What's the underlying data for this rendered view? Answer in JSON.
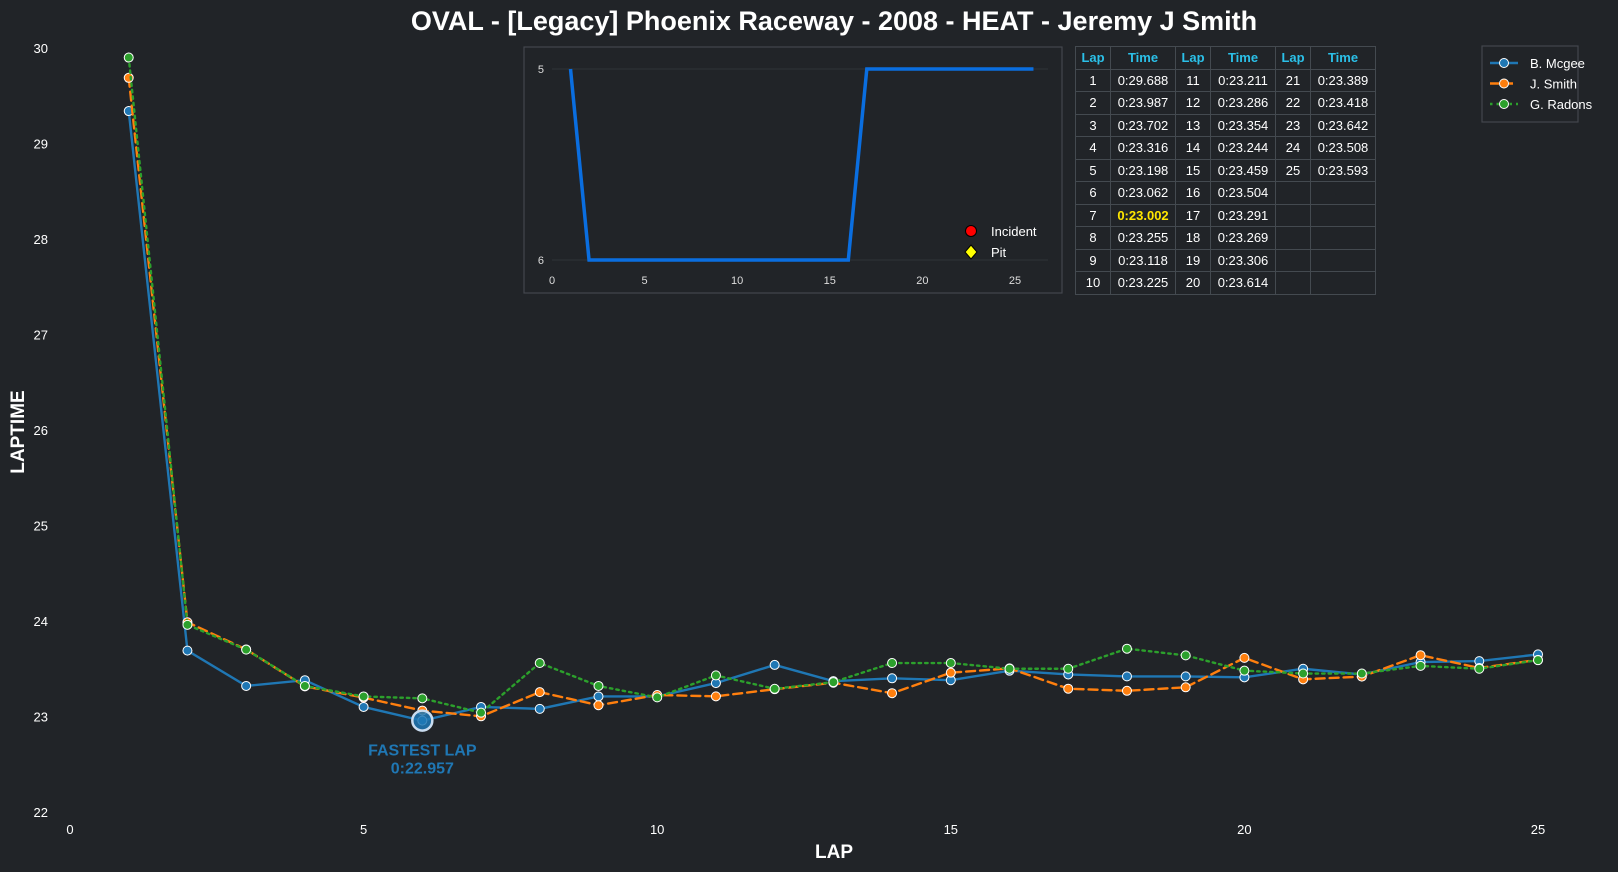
{
  "chart_data": {
    "type": "line",
    "title": "OVAL - [Legacy] Phoenix Raceway - 2008 - HEAT - Jeremy J Smith",
    "xlabel": "LAP",
    "ylabel": "LAPTIME",
    "xlim": [
      0,
      25
    ],
    "ylim": [
      22,
      30
    ],
    "xticks": [
      "0",
      "5",
      "10",
      "15",
      "20",
      "25"
    ],
    "yticks": [
      "22",
      "23",
      "24",
      "25",
      "26",
      "27",
      "28",
      "29",
      "30"
    ],
    "x": [
      1,
      2,
      3,
      4,
      5,
      6,
      7,
      8,
      9,
      10,
      11,
      12,
      13,
      14,
      15,
      16,
      17,
      18,
      19,
      20,
      21,
      22,
      23,
      24,
      25
    ],
    "legend_position": "top-right",
    "series": [
      {
        "name": "B. Mcgee",
        "color": "#1f77b4",
        "style": "solid",
        "values": [
          29.34,
          23.69,
          23.32,
          23.38,
          23.1,
          22.957,
          23.1,
          23.08,
          23.21,
          23.21,
          23.35,
          23.54,
          23.37,
          23.4,
          23.38,
          23.48,
          23.44,
          23.42,
          23.42,
          23.41,
          23.5,
          23.44,
          23.57,
          23.58,
          23.65
        ]
      },
      {
        "name": "J. Smith",
        "color": "#ff7f0e",
        "style": "dashed",
        "values": [
          29.688,
          23.987,
          23.702,
          23.316,
          23.198,
          23.062,
          23.002,
          23.255,
          23.118,
          23.225,
          23.211,
          23.286,
          23.354,
          23.244,
          23.459,
          23.504,
          23.291,
          23.269,
          23.306,
          23.614,
          23.389,
          23.418,
          23.642,
          23.508,
          23.593
        ]
      },
      {
        "name": "G. Radons",
        "color": "#2ca02c",
        "style": "dotted",
        "values": [
          29.9,
          23.96,
          23.7,
          23.32,
          23.21,
          23.19,
          23.04,
          23.56,
          23.32,
          23.2,
          23.43,
          23.29,
          23.36,
          23.56,
          23.56,
          23.5,
          23.5,
          23.71,
          23.64,
          23.48,
          23.45,
          23.45,
          23.53,
          23.5,
          23.59
        ]
      }
    ],
    "fastest_lap": {
      "label": "FASTEST LAP",
      "value": "0:22.957",
      "lap": 6,
      "time": 22.957
    },
    "inset": {
      "type": "line",
      "color": "#0a6ee0",
      "xlim": [
        0,
        27
      ],
      "xticks": [
        "0",
        "5",
        "10",
        "15",
        "20",
        "25"
      ],
      "yticks": [
        "5",
        "6"
      ],
      "x": [
        1,
        2,
        3,
        4,
        5,
        6,
        7,
        8,
        9,
        10,
        11,
        12,
        13,
        14,
        15,
        16,
        17,
        18,
        19,
        20,
        21,
        22,
        23,
        24,
        25,
        26
      ],
      "values": [
        5,
        6,
        6,
        6,
        6,
        6,
        6,
        6,
        6,
        6,
        6,
        6,
        6,
        6,
        6,
        6,
        5,
        5,
        5,
        5,
        5,
        5,
        5,
        5,
        5,
        5
      ],
      "legend": [
        {
          "label": "Incident",
          "color": "#ff0000",
          "marker": "circle"
        },
        {
          "label": "Pit",
          "color": "#ffff00",
          "marker": "diamond"
        }
      ]
    },
    "table": {
      "headers": [
        "Lap",
        "Time",
        "Lap",
        "Time",
        "Lap",
        "Time"
      ],
      "highlight_row": 6,
      "highlight_col": 1,
      "rows": [
        [
          "1",
          "0:29.688",
          "11",
          "0:23.211",
          "21",
          "0:23.389"
        ],
        [
          "2",
          "0:23.987",
          "12",
          "0:23.286",
          "22",
          "0:23.418"
        ],
        [
          "3",
          "0:23.702",
          "13",
          "0:23.354",
          "23",
          "0:23.642"
        ],
        [
          "4",
          "0:23.316",
          "14",
          "0:23.244",
          "24",
          "0:23.508"
        ],
        [
          "5",
          "0:23.198",
          "15",
          "0:23.459",
          "25",
          "0:23.593"
        ],
        [
          "6",
          "0:23.062",
          "16",
          "0:23.504",
          "",
          ""
        ],
        [
          "7",
          "0:23.002",
          "17",
          "0:23.291",
          "",
          ""
        ],
        [
          "8",
          "0:23.255",
          "18",
          "0:23.269",
          "",
          ""
        ],
        [
          "9",
          "0:23.118",
          "19",
          "0:23.306",
          "",
          ""
        ],
        [
          "10",
          "0:23.225",
          "20",
          "0:23.614",
          "",
          ""
        ]
      ]
    }
  }
}
